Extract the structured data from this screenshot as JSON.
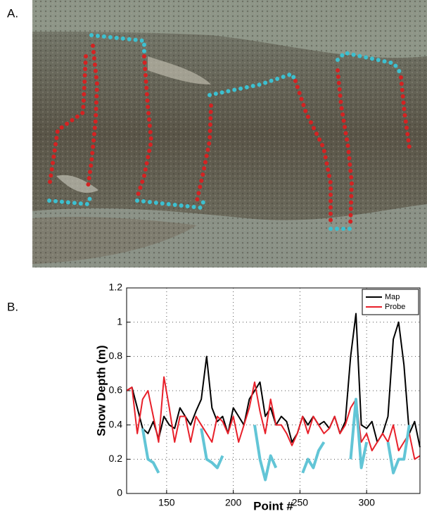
{
  "panel_a": {
    "label": "A."
  },
  "chart_data": {
    "type": "line",
    "panel_label": "B.",
    "xlabel": "Point #",
    "ylabel": "Snow Depth (m)",
    "x": [
      120,
      124,
      128,
      132,
      136,
      140,
      144,
      148,
      152,
      156,
      160,
      164,
      168,
      172,
      176,
      180,
      184,
      188,
      192,
      196,
      200,
      204,
      208,
      212,
      216,
      220,
      224,
      228,
      232,
      236,
      240,
      244,
      248,
      252,
      256,
      260,
      264,
      268,
      272,
      276,
      280,
      284,
      288,
      292,
      296,
      300,
      304,
      308,
      312,
      316,
      320,
      324,
      328,
      332,
      336,
      340
    ],
    "series": [
      {
        "name": "Map",
        "color": "#000000",
        "width": 2,
        "values": [
          0.6,
          0.62,
          0.5,
          0.38,
          0.35,
          0.42,
          0.32,
          0.45,
          0.4,
          0.38,
          0.5,
          0.45,
          0.4,
          0.48,
          0.55,
          0.8,
          0.5,
          0.42,
          0.45,
          0.35,
          0.5,
          0.45,
          0.4,
          0.55,
          0.6,
          0.65,
          0.45,
          0.5,
          0.4,
          0.45,
          0.42,
          0.3,
          0.35,
          0.45,
          0.4,
          0.45,
          0.4,
          0.42,
          0.38,
          0.45,
          0.35,
          0.42,
          0.8,
          1.05,
          0.4,
          0.38,
          0.42,
          0.3,
          0.35,
          0.45,
          0.9,
          1.0,
          0.75,
          0.35,
          0.42,
          0.27
        ]
      },
      {
        "name": "Probe",
        "color": "#e8202a",
        "width": 2,
        "values": [
          0.6,
          0.62,
          0.35,
          0.55,
          0.6,
          0.45,
          0.3,
          0.68,
          0.5,
          0.3,
          0.45,
          0.45,
          0.3,
          0.45,
          0.4,
          0.35,
          0.3,
          0.45,
          0.42,
          0.35,
          0.45,
          0.3,
          0.4,
          0.5,
          0.65,
          0.48,
          0.35,
          0.55,
          0.4,
          0.4,
          0.35,
          0.28,
          0.35,
          0.45,
          0.35,
          0.45,
          0.4,
          0.35,
          0.38,
          0.45,
          0.35,
          0.4,
          0.5,
          0.55,
          0.3,
          0.35,
          0.25,
          0.3,
          0.35,
          0.3,
          0.4,
          0.25,
          0.3,
          0.35,
          0.2,
          0.22
        ]
      },
      {
        "color": "#62c5d6",
        "width": 4,
        "values": [
          null,
          null,
          null,
          0.38,
          0.2,
          0.18,
          0.12,
          null,
          null,
          null,
          null,
          null,
          null,
          null,
          0.38,
          0.2,
          0.18,
          0.15,
          0.22,
          null,
          null,
          null,
          null,
          null,
          0.4,
          0.2,
          0.08,
          0.22,
          0.15,
          null,
          null,
          null,
          null,
          0.12,
          0.2,
          0.15,
          0.25,
          0.3,
          null,
          null,
          null,
          null,
          0.2,
          0.55,
          0.15,
          0.3,
          null,
          null,
          null,
          0.3,
          0.12,
          0.2,
          0.2,
          0.4,
          null,
          null
        ]
      }
    ],
    "xlim": [
      120,
      340
    ],
    "xticks": [
      150,
      200,
      250,
      300
    ],
    "ylim": [
      0,
      1.2
    ],
    "yticks": [
      0,
      0.2,
      0.4,
      0.6,
      0.8,
      1,
      1.2
    ],
    "grid": true,
    "legend": "upper right"
  }
}
